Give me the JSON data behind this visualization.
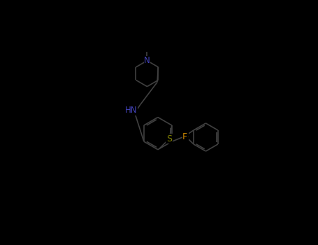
{
  "bg_color": "#000000",
  "bond_color": "#404040",
  "N_color": "#4444bb",
  "S_color": "#808000",
  "F_color": "#cc8800",
  "lw": 1.2,
  "figsize": [
    4.55,
    3.5
  ],
  "dpi": 100,
  "xlim": [
    0,
    455
  ],
  "ylim": [
    0,
    350
  ]
}
